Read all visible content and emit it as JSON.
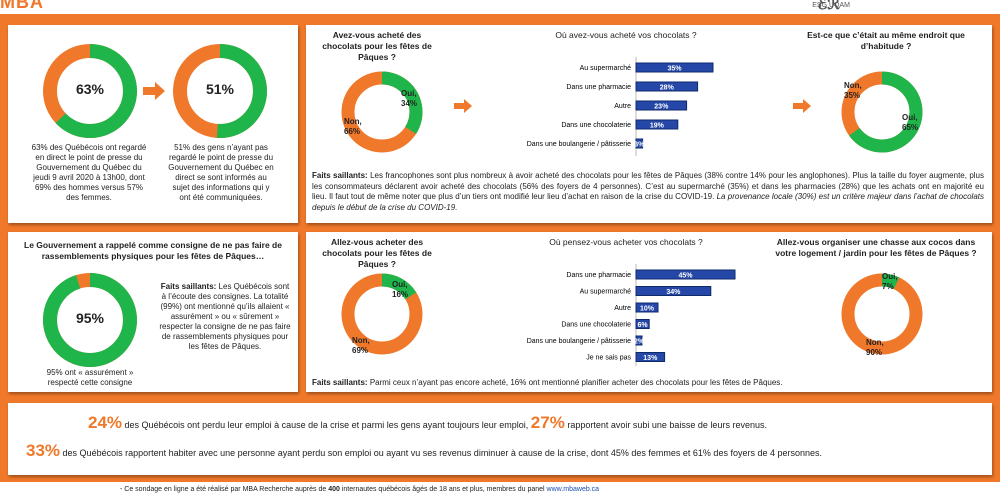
{
  "header": {
    "brand": "MBA",
    "partner": "ESG UQAM"
  },
  "colors": {
    "orange": "#f0782a",
    "green": "#1fb54a",
    "blue": "#1b3a86"
  },
  "panel1": {
    "pct1": "63%",
    "pct2": "51%",
    "text1": "63% des Québécois ont regardé en direct le point de presse du Gouvernement du Québec du jeudi 9 avril 2020 à 13h00, dont 69% des hommes versus 57% des femmes.",
    "text2": "51% des gens n’ayant pas regardé le point de presse du Gouvernement du Québec en direct se sont informés au sujet des informations qui y ont été communiquées."
  },
  "panel2": {
    "q1": "Avez-vous acheté des chocolats pour les fêtes de Pâques ?",
    "q1_oui": "Oui,",
    "q1_oui_v": "34%",
    "q1_non": "Non,",
    "q1_non_v": "66%",
    "q2": "Où avez-vous acheté vos chocolats ?",
    "bars": [
      {
        "label": "Au supermarché",
        "value": 35,
        "text": "35%"
      },
      {
        "label": "Dans une pharmacie",
        "value": 28,
        "text": "28%"
      },
      {
        "label": "Autre",
        "value": 23,
        "text": "23%"
      },
      {
        "label": "Dans une chocolaterie",
        "value": 19,
        "text": "19%"
      },
      {
        "label": "Dans une boulangerie / pâtisserie",
        "value": 3,
        "text": "3%"
      }
    ],
    "q3": "Est-ce que c’était au même endroit que d’habitude ?",
    "q3_non": "Non,",
    "q3_non_v": "35%",
    "q3_oui": "Oui,",
    "q3_oui_v": "65%",
    "faits_label": "Faits saillants:",
    "faits": "Les francophones sont plus nombreux à avoir acheté des chocolats pour les fêtes de Pâques (38% contre 14% pour les anglophones). Plus la taille du foyer augmente, plus les consommateurs déclarent avoir acheté des chocolats (56% des foyers de 4 personnes). C’est au supermarché (35%) et dans les pharmacies (28%) que les achats ont en majorité eu lieu. Il faut tout de même noter que plus d’un tiers ont modifié leur lieu d’achat en raison de la crise du COVID-19.",
    "faits_italic": "La provenance locale (30%) est un critère majeur dans l’achat de chocolats depuis le début de la crise du COVID-19."
  },
  "panel3": {
    "title": "Le Gouvernement a rappelé comme consigne de ne pas faire de rassemblements physiques pour les fêtes de Pâques…",
    "pct": "95%",
    "caption": "95% ont « assurément » respecté cette consigne",
    "faits_label": "Faits saillants:",
    "faits": "Les Québécois sont à l’écoute des consignes. La totalité (99%) ont mentionné qu’ils allaient « assurément » ou « sûrement » respecter la consigne de ne pas faire de rassemblements physiques pour les fêtes de Pâques."
  },
  "panel4": {
    "q1": "Allez-vous acheter des chocolats pour les fêtes de Pâques ?",
    "q1_oui": "Oui,",
    "q1_oui_v": "16%",
    "q1_non": "Non,",
    "q1_non_v": "69%",
    "q2": "Où pensez-vous acheter vos chocolats ?",
    "bars": [
      {
        "label": "Dans une pharmacie",
        "value": 45,
        "text": "45%"
      },
      {
        "label": "Au supermarché",
        "value": 34,
        "text": "34%"
      },
      {
        "label": "Autre",
        "value": 10,
        "text": "10%"
      },
      {
        "label": "Dans une chocolaterie",
        "value": 6,
        "text": "6%"
      },
      {
        "label": "Dans une boulangerie / pâtisserie",
        "value": 2,
        "text": "2%"
      },
      {
        "label": "Je ne sais pas",
        "value": 13,
        "text": "13%"
      }
    ],
    "q3": "Allez-vous organiser une chasse aux cocos dans votre logement / jardin pour les fêtes de Pâques ?",
    "q3_oui": "Oui,",
    "q3_oui_v": "7%",
    "q3_non": "Non,",
    "q3_non_v": "90%",
    "faits_label": "Faits saillants:",
    "faits": "Parmi ceux n’ayant pas encore acheté, 16% ont mentionné planifier acheter des chocolats pour les fêtes de Pâques."
  },
  "panel5": {
    "p1": "24%",
    "t1": "des Québécois ont perdu leur emploi à cause de la crise et parmi les gens ayant toujours leur emploi,",
    "p2": "27%",
    "t2": "rapportent avoir subi une baisse de leurs revenus.",
    "p3": "33%",
    "t3": "des Québécois rapportent habiter avec une personne ayant perdu son emploi ou ayant vu ses revenus diminuer à cause de la crise, dont 45% des femmes et 61% des foyers de 4 personnes."
  },
  "footer": {
    "text_a": "Ce sondage en ligne a été réalisé par MBA Recherche auprès de",
    "count": "400",
    "text_b": "internautes québécois âgés de 18 ans et plus, membres du panel",
    "link": "www.mbaweb.ca"
  },
  "chart_data": [
    {
      "type": "pie",
      "title": "Avez-vous acheté des chocolats pour les fêtes de Pâques ?",
      "categories": [
        "Oui",
        "Non"
      ],
      "values": [
        34,
        66
      ]
    },
    {
      "type": "bar",
      "title": "Où avez-vous acheté vos chocolats ?",
      "categories": [
        "Au supermarché",
        "Dans une pharmacie",
        "Autre",
        "Dans une chocolaterie",
        "Dans une boulangerie / pâtisserie"
      ],
      "values": [
        35,
        28,
        23,
        19,
        3
      ]
    },
    {
      "type": "pie",
      "title": "Est-ce que c’était au même endroit que d’habitude ?",
      "categories": [
        "Oui",
        "Non"
      ],
      "values": [
        65,
        35
      ]
    },
    {
      "type": "pie",
      "title": "Allez-vous acheter des chocolats pour les fêtes de Pâques ?",
      "categories": [
        "Oui",
        "Non"
      ],
      "values": [
        16,
        69
      ]
    },
    {
      "type": "bar",
      "title": "Où pensez-vous acheter vos chocolats ?",
      "categories": [
        "Dans une pharmacie",
        "Au supermarché",
        "Autre",
        "Dans une chocolaterie",
        "Dans une boulangerie / pâtisserie",
        "Je ne sais pas"
      ],
      "values": [
        45,
        34,
        10,
        6,
        2,
        13
      ]
    },
    {
      "type": "pie",
      "title": "Allez-vous organiser une chasse aux cocos dans votre logement / jardin pour les fêtes de Pâques ?",
      "categories": [
        "Oui",
        "Non"
      ],
      "values": [
        7,
        90
      ]
    }
  ]
}
